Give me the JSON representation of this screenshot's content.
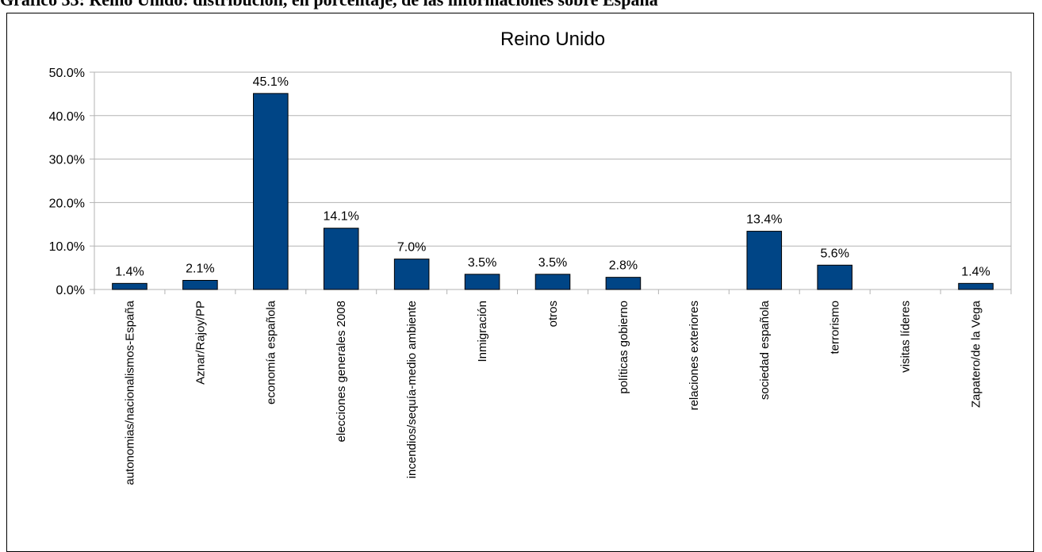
{
  "page_caption": "Gráfico 33: Reino Unido: distribución, en porcentaje, de las informaciones sobre España",
  "chart_data": {
    "type": "bar",
    "title": "Reino Unido",
    "xlabel": "",
    "ylabel": "",
    "ylim": [
      0,
      50
    ],
    "yticks": [
      "0.0%",
      "10.0%",
      "20.0%",
      "30.0%",
      "40.0%",
      "50.0%"
    ],
    "grid": true,
    "legend": "none",
    "bar_color": "#004586",
    "categories": [
      "autonomias/nacionalismos-España",
      "Aznar/Rajoy/PP",
      "economía española",
      "elecciones generales 2008",
      "incendios/sequía-medio ambiente",
      "Inmigración",
      "otros",
      "políticas gobierno",
      "relaciones exteriores",
      "sociedad española",
      "terrorismo",
      "visitas líderes",
      "Zapatero/de la Vega"
    ],
    "values": [
      1.4,
      2.1,
      45.1,
      14.1,
      7.0,
      3.5,
      3.5,
      2.8,
      0,
      13.4,
      5.6,
      0,
      1.4
    ],
    "value_labels": [
      "1.4%",
      "2.1%",
      "45.1%",
      "14.1%",
      "7.0%",
      "3.5%",
      "3.5%",
      "2.8%",
      "",
      "13.4%",
      "5.6%",
      "",
      "1.4%"
    ]
  }
}
